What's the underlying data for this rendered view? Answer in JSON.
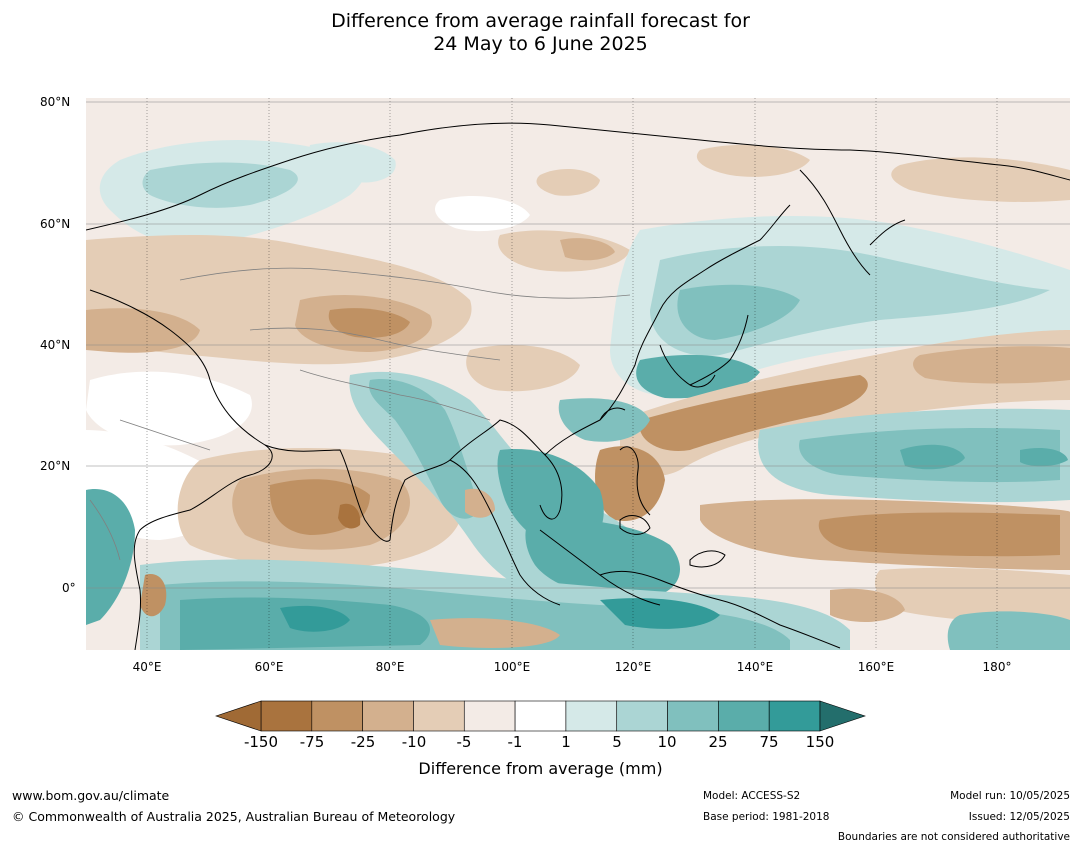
{
  "title": {
    "line1": "Difference from average rainfall forecast for",
    "line2": "24 May to 6 June 2025"
  },
  "map": {
    "lat_labels": [
      "80°N",
      "60°N",
      "40°N",
      "20°N",
      "0°"
    ],
    "lon_labels": [
      "40°E",
      "60°E",
      "80°E",
      "100°E",
      "120°E",
      "140°E",
      "160°E",
      "180°"
    ]
  },
  "colorbar": {
    "title": "Difference from average (mm)",
    "tick_labels": [
      "-150",
      "-75",
      "-25",
      "-10",
      "-5",
      "-1",
      "1",
      "5",
      "10",
      "25",
      "75",
      "150"
    ],
    "colors": [
      "#a9733e",
      "#bf9163",
      "#d3b08e",
      "#e4cdb6",
      "#f3ebe6",
      "#ffffff",
      "#d5e9e8",
      "#abd5d4",
      "#80c0be",
      "#5aadaa",
      "#339b99",
      "#1f7f7d"
    ],
    "extend_low_color": "#a06a35",
    "extend_high_color": "#236e6c"
  },
  "footer": {
    "website": "www.bom.gov.au/climate",
    "copyright": "© Commonwealth of Australia 2025, Australian Bureau of Meteorology",
    "model": "Model: ACCESS-S2",
    "base_period": "Base period: 1981-2018",
    "model_run": "Model run: 10/05/2025",
    "issued": "Issued: 12/05/2025",
    "boundaries_note": "Boundaries are not considered authoritative"
  }
}
